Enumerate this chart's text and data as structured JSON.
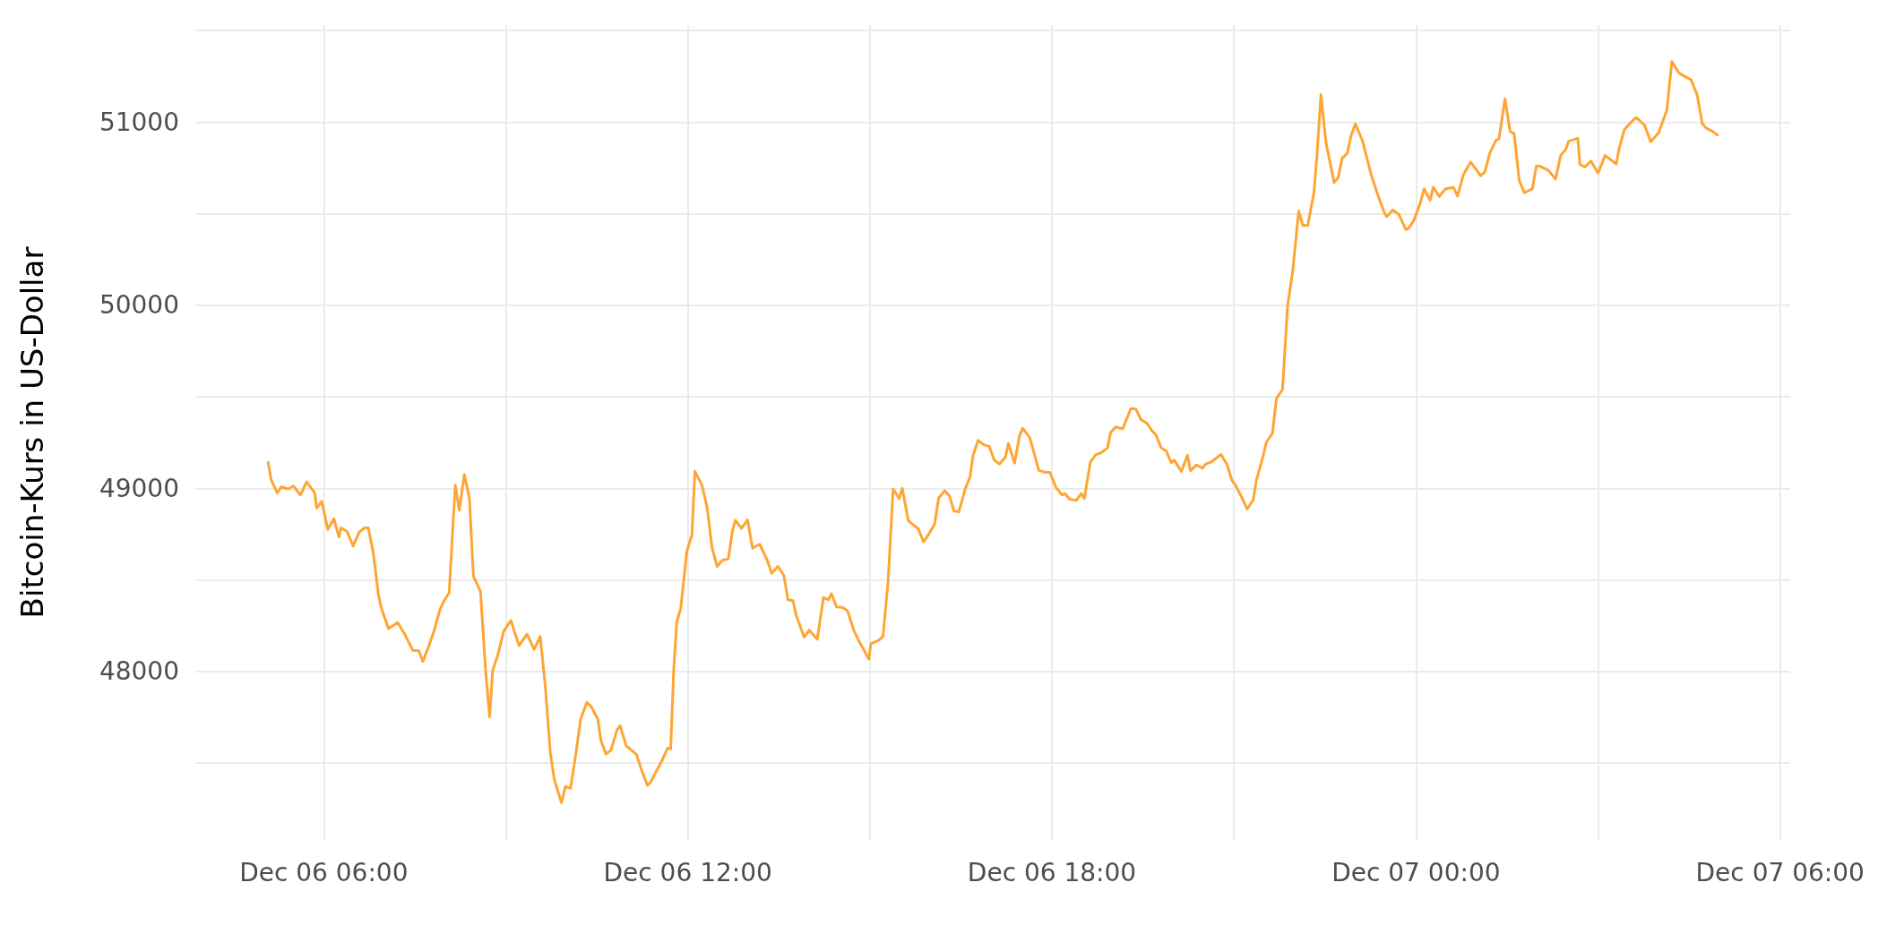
{
  "chart_data": {
    "type": "line",
    "ylabel": "Bitcoin-Kurs in US-Dollar",
    "grid": true,
    "marker": "none",
    "xlim": [
      "--12-06T03:53",
      "--12-07T06:10"
    ],
    "xticks": [
      {
        "value": "--12-06T06:00",
        "label": "Dec 06 06:00"
      },
      {
        "value": "--12-06T09:00",
        "label": null
      },
      {
        "value": "--12-06T12:00",
        "label": "Dec 06 12:00"
      },
      {
        "value": "--12-06T15:00",
        "label": null
      },
      {
        "value": "--12-06T18:00",
        "label": "Dec 06 18:00"
      },
      {
        "value": "--12-06T21:00",
        "label": null
      },
      {
        "value": "--12-07T00:00",
        "label": "Dec 07 00:00"
      },
      {
        "value": "--12-07T03:00",
        "label": null
      },
      {
        "value": "--12-07T06:00",
        "label": "Dec 07 06:00"
      }
    ],
    "ylim": [
      47080,
      51530
    ],
    "yticks": [
      {
        "value": 47500,
        "label": null
      },
      48000,
      {
        "value": 48500,
        "label": null
      },
      49000,
      {
        "value": 49500,
        "label": null
      },
      50000,
      {
        "value": 50500,
        "label": null
      },
      51000,
      {
        "value": 51500,
        "label": null
      }
    ],
    "x": [
      "--12-06T05:05",
      "--12-06T05:08",
      "--12-06T05:14",
      "--12-06T05:18",
      "--12-06T05:25",
      "--12-06T05:30",
      "--12-06T05:37",
      "--12-06T05:43",
      "--12-06T05:51",
      "--12-06T05:53",
      "--12-06T05:58",
      "--12-06T06:04",
      "--12-06T06:10",
      "--12-06T06:15",
      "--12-06T06:17",
      "--12-06T06:23",
      "--12-06T06:29",
      "--12-06T06:35",
      "--12-06T06:40",
      "--12-06T06:44",
      "--12-06T06:49",
      "--12-06T06:54",
      "--12-06T06:57",
      "--12-06T07:04",
      "--12-06T07:13",
      "--12-06T07:20",
      "--12-06T07:28",
      "--12-06T07:34",
      "--12-06T07:38",
      "--12-06T07:44",
      "--12-06T07:49",
      "--12-06T07:55",
      "--12-06T07:59",
      "--12-06T08:04",
      "--12-06T08:10",
      "--12-06T08:14",
      "--12-06T08:19",
      "--12-06T08:24",
      "--12-06T08:28",
      "--12-06T08:35",
      "--12-06T08:40",
      "--12-06T08:44",
      "--12-06T08:47",
      "--12-06T08:52",
      "--12-06T08:58",
      "--12-06T09:05",
      "--12-06T09:13",
      "--12-06T09:21",
      "--12-06T09:28",
      "--12-06T09:34",
      "--12-06T09:39",
      "--12-06T09:44",
      "--12-06T09:48",
      "--12-06T09:55",
      "--12-06T09:59",
      "--12-06T10:04",
      "--12-06T10:09",
      "--12-06T10:14",
      "--12-06T10:20",
      "--12-06T10:24",
      "--12-06T10:31",
      "--12-06T10:34",
      "--12-06T10:39",
      "--12-06T10:44",
      "--12-06T10:50",
      "--12-06T10:53",
      "--12-06T10:59",
      "--12-06T11:09",
      "--12-06T11:14",
      "--12-06T11:20",
      "--12-06T11:23",
      "--12-06T11:29",
      "--12-06T11:34",
      "--12-06T11:40",
      "--12-06T11:43",
      "--12-06T11:46",
      "--12-06T11:49",
      "--12-06T11:53",
      "--12-06T11:59",
      "--12-06T12:04",
      "--12-06T12:07",
      "--12-06T12:14",
      "--12-06T12:19",
      "--12-06T12:24",
      "--12-06T12:29",
      "--12-06T12:34",
      "--12-06T12:40",
      "--12-06T12:44",
      "--12-06T12:47",
      "--12-06T12:53",
      "--12-06T12:59",
      "--12-06T13:04",
      "--12-06T13:11",
      "--12-06T13:18",
      "--12-06T13:23",
      "--12-06T13:29",
      "--12-06T13:35",
      "--12-06T13:39",
      "--12-06T13:44",
      "--12-06T13:47",
      "--12-06T13:55",
      "--12-06T14:00",
      "--12-06T14:08",
      "--12-06T14:14",
      "--12-06T14:19",
      "--12-06T14:22",
      "--12-06T14:27",
      "--12-06T14:33",
      "--12-06T14:38",
      "--12-06T14:44",
      "--12-06T14:49",
      "--12-06T14:59",
      "--12-06T15:01",
      "--12-06T15:09",
      "--12-06T15:13",
      "--12-06T15:18",
      "--12-06T15:23",
      "--12-06T15:29",
      "--12-06T15:32",
      "--12-06T15:38",
      "--12-06T15:48",
      "--12-06T15:53",
      "--12-06T15:59",
      "--12-06T16:04",
      "--12-06T16:08",
      "--12-06T16:14",
      "--12-06T16:19",
      "--12-06T16:23",
      "--12-06T16:28",
      "--12-06T16:34",
      "--12-06T16:39",
      "--12-06T16:42",
      "--12-06T16:47",
      "--12-06T16:53",
      "--12-06T16:58",
      "--12-06T17:03",
      "--12-06T17:08",
      "--12-06T17:14",
      "--12-06T17:17",
      "--12-06T17:23",
      "--12-06T17:28",
      "--12-06T17:31",
      "--12-06T17:38",
      "--12-06T17:47",
      "--12-06T17:53",
      "--12-06T17:58",
      "--12-06T18:04",
      "--12-06T18:10",
      "--12-06T18:13",
      "--12-06T18:17",
      "--12-06T18:24",
      "--12-06T18:29",
      "--12-06T18:32",
      "--12-06T18:38",
      "--12-06T18:43",
      "--12-06T18:49",
      "--12-06T18:55",
      "--12-06T18:58",
      "--12-06T19:03",
      "--12-06T19:10",
      "--12-06T19:18",
      "--12-06T19:23",
      "--12-06T19:28",
      "--12-06T19:34",
      "--12-06T19:39",
      "--12-06T19:43",
      "--12-06T19:48",
      "--12-06T19:53",
      "--12-06T19:58",
      "--12-06T20:01",
      "--12-06T20:08",
      "--12-06T20:14",
      "--12-06T20:17",
      "--12-06T20:23",
      "--12-06T20:29",
      "--12-06T20:32",
      "--12-06T20:38",
      "--12-06T20:47",
      "--12-06T20:53",
      "--12-06T20:58",
      "--12-06T21:01",
      "--12-06T21:07",
      "--12-06T21:13",
      "--12-06T21:19",
      "--12-06T21:22",
      "--12-06T21:29",
      "--12-06T21:32",
      "--12-06T21:38",
      "--12-06T21:42",
      "--12-06T21:48",
      "--12-06T21:53",
      "--12-06T21:58",
      "--12-06T22:04",
      "--12-06T22:08",
      "--12-06T22:13",
      "--12-06T22:19",
      "--12-06T22:22",
      "--12-06T22:26",
      "--12-06T22:31",
      "--12-06T22:39",
      "--12-06T22:43",
      "--12-06T22:47",
      "--12-06T22:52",
      "--12-06T22:56",
      "--12-06T23:00",
      "--12-06T23:07",
      "--12-06T23:16",
      "--12-06T23:23",
      "--12-06T23:29",
      "--12-06T23:31",
      "--12-06T23:37",
      "--12-06T23:43",
      "--12-06T23:50",
      "--12-06T23:53",
      "--12-06T23:58",
      "--12-07T00:04",
      "--12-07T00:08",
      "--12-07T00:14",
      "--12-07T00:17",
      "--12-07T00:23",
      "--12-07T00:29",
      "--12-07T00:37",
      "--12-07T00:41",
      "--12-07T00:47",
      "--12-07T00:54",
      "--12-07T01:04",
      "--12-07T01:08",
      "--12-07T01:13",
      "--12-07T01:19",
      "--12-07T01:22",
      "--12-07T01:28",
      "--12-07T01:33",
      "--12-07T01:37",
      "--12-07T01:42",
      "--12-07T01:47",
      "--12-07T01:55",
      "--12-07T01:59",
      "--12-07T02:02",
      "--12-07T02:11",
      "--12-07T02:18",
      "--12-07T02:23",
      "--12-07T02:28",
      "--12-07T02:31",
      "--12-07T02:40",
      "--12-07T02:42",
      "--12-07T02:47",
      "--12-07T02:53",
      "--12-07T03:00",
      "--12-07T03:07",
      "--12-07T03:18",
      "--12-07T03:21",
      "--12-07T03:26",
      "--12-07T03:34",
      "--12-07T03:38",
      "--12-07T03:46",
      "--12-07T03:52",
      "--12-07T04:00",
      "--12-07T04:08",
      "--12-07T04:13",
      "--12-07T04:20",
      "--12-07T04:32",
      "--12-07T04:38",
      "--12-07T04:43",
      "--12-07T04:47",
      "--12-07T04:52",
      "--12-07T04:58"
    ],
    "series": [
      {
        "color": "#ffa533",
        "values": [
          49141,
          49046,
          48975,
          49008,
          48997,
          49013,
          48964,
          49036,
          48975,
          48892,
          48929,
          48776,
          48834,
          48735,
          48784,
          48765,
          48685,
          48760,
          48784,
          48784,
          48648,
          48420,
          48345,
          48234,
          48267,
          48204,
          48116,
          48113,
          48055,
          48141,
          48221,
          48340,
          48387,
          48431,
          49017,
          48881,
          49075,
          48947,
          48519,
          48436,
          48005,
          47753,
          48005,
          48088,
          48221,
          48279,
          48141,
          48204,
          48121,
          48191,
          47922,
          47557,
          47408,
          47284,
          47372,
          47362,
          47541,
          47740,
          47831,
          47812,
          47740,
          47624,
          47549,
          47571,
          47682,
          47704,
          47594,
          47549,
          47466,
          47378,
          47395,
          47458,
          47508,
          47582,
          47577,
          48005,
          48270,
          48345,
          48657,
          48745,
          49093,
          49017,
          48897,
          48673,
          48574,
          48607,
          48615,
          48765,
          48826,
          48781,
          48828,
          48673,
          48695,
          48615,
          48536,
          48574,
          48524,
          48392,
          48387,
          48309,
          48188,
          48226,
          48176,
          48403,
          48392,
          48425,
          48353,
          48350,
          48330,
          48226,
          48168,
          48068,
          48151,
          48171,
          48193,
          48491,
          48997,
          48944,
          49000,
          48823,
          48778,
          48707,
          48757,
          48806,
          48947,
          48988,
          48955,
          48877,
          48872,
          48993,
          49063,
          49179,
          49262,
          49237,
          49229,
          49154,
          49133,
          49171,
          49245,
          49138,
          49287,
          49328,
          49279,
          49099,
          49088,
          49088,
          49005,
          48964,
          48972,
          48942,
          48934,
          48972,
          48944,
          49143,
          49182,
          49196,
          49221,
          49305,
          49335,
          49326,
          49436,
          49433,
          49376,
          49355,
          49314,
          49291,
          49222,
          49204,
          49140,
          49154,
          49092,
          49181,
          49096,
          49128,
          49110,
          49133,
          49145,
          49186,
          49133,
          49043,
          49021,
          48959,
          48888,
          48936,
          49039,
          49181,
          49252,
          49300,
          49491,
          49539,
          49996,
          50183,
          50514,
          50436,
          50436,
          50613,
          50812,
          51150,
          50890,
          50670,
          50697,
          50803,
          50830,
          50930,
          50990,
          50900,
          50706,
          50590,
          50502,
          50484,
          50520,
          50496,
          50413,
          50422,
          50466,
          50555,
          50635,
          50573,
          50644,
          50594,
          50635,
          50644,
          50596,
          50715,
          50782,
          50707,
          50727,
          50831,
          50901,
          50909,
          51127,
          50950,
          50937,
          50683,
          50615,
          50636,
          50760,
          50760,
          50736,
          50689,
          50818,
          50851,
          50896,
          50912,
          50769,
          50755,
          50788,
          50722,
          50818,
          50772,
          50859,
          50959,
          51008,
          51025,
          50983,
          50893,
          50942,
          51066,
          51331,
          51268,
          51231,
          51149,
          50992,
          50967,
          50954,
          50929
        ]
      }
    ]
  }
}
